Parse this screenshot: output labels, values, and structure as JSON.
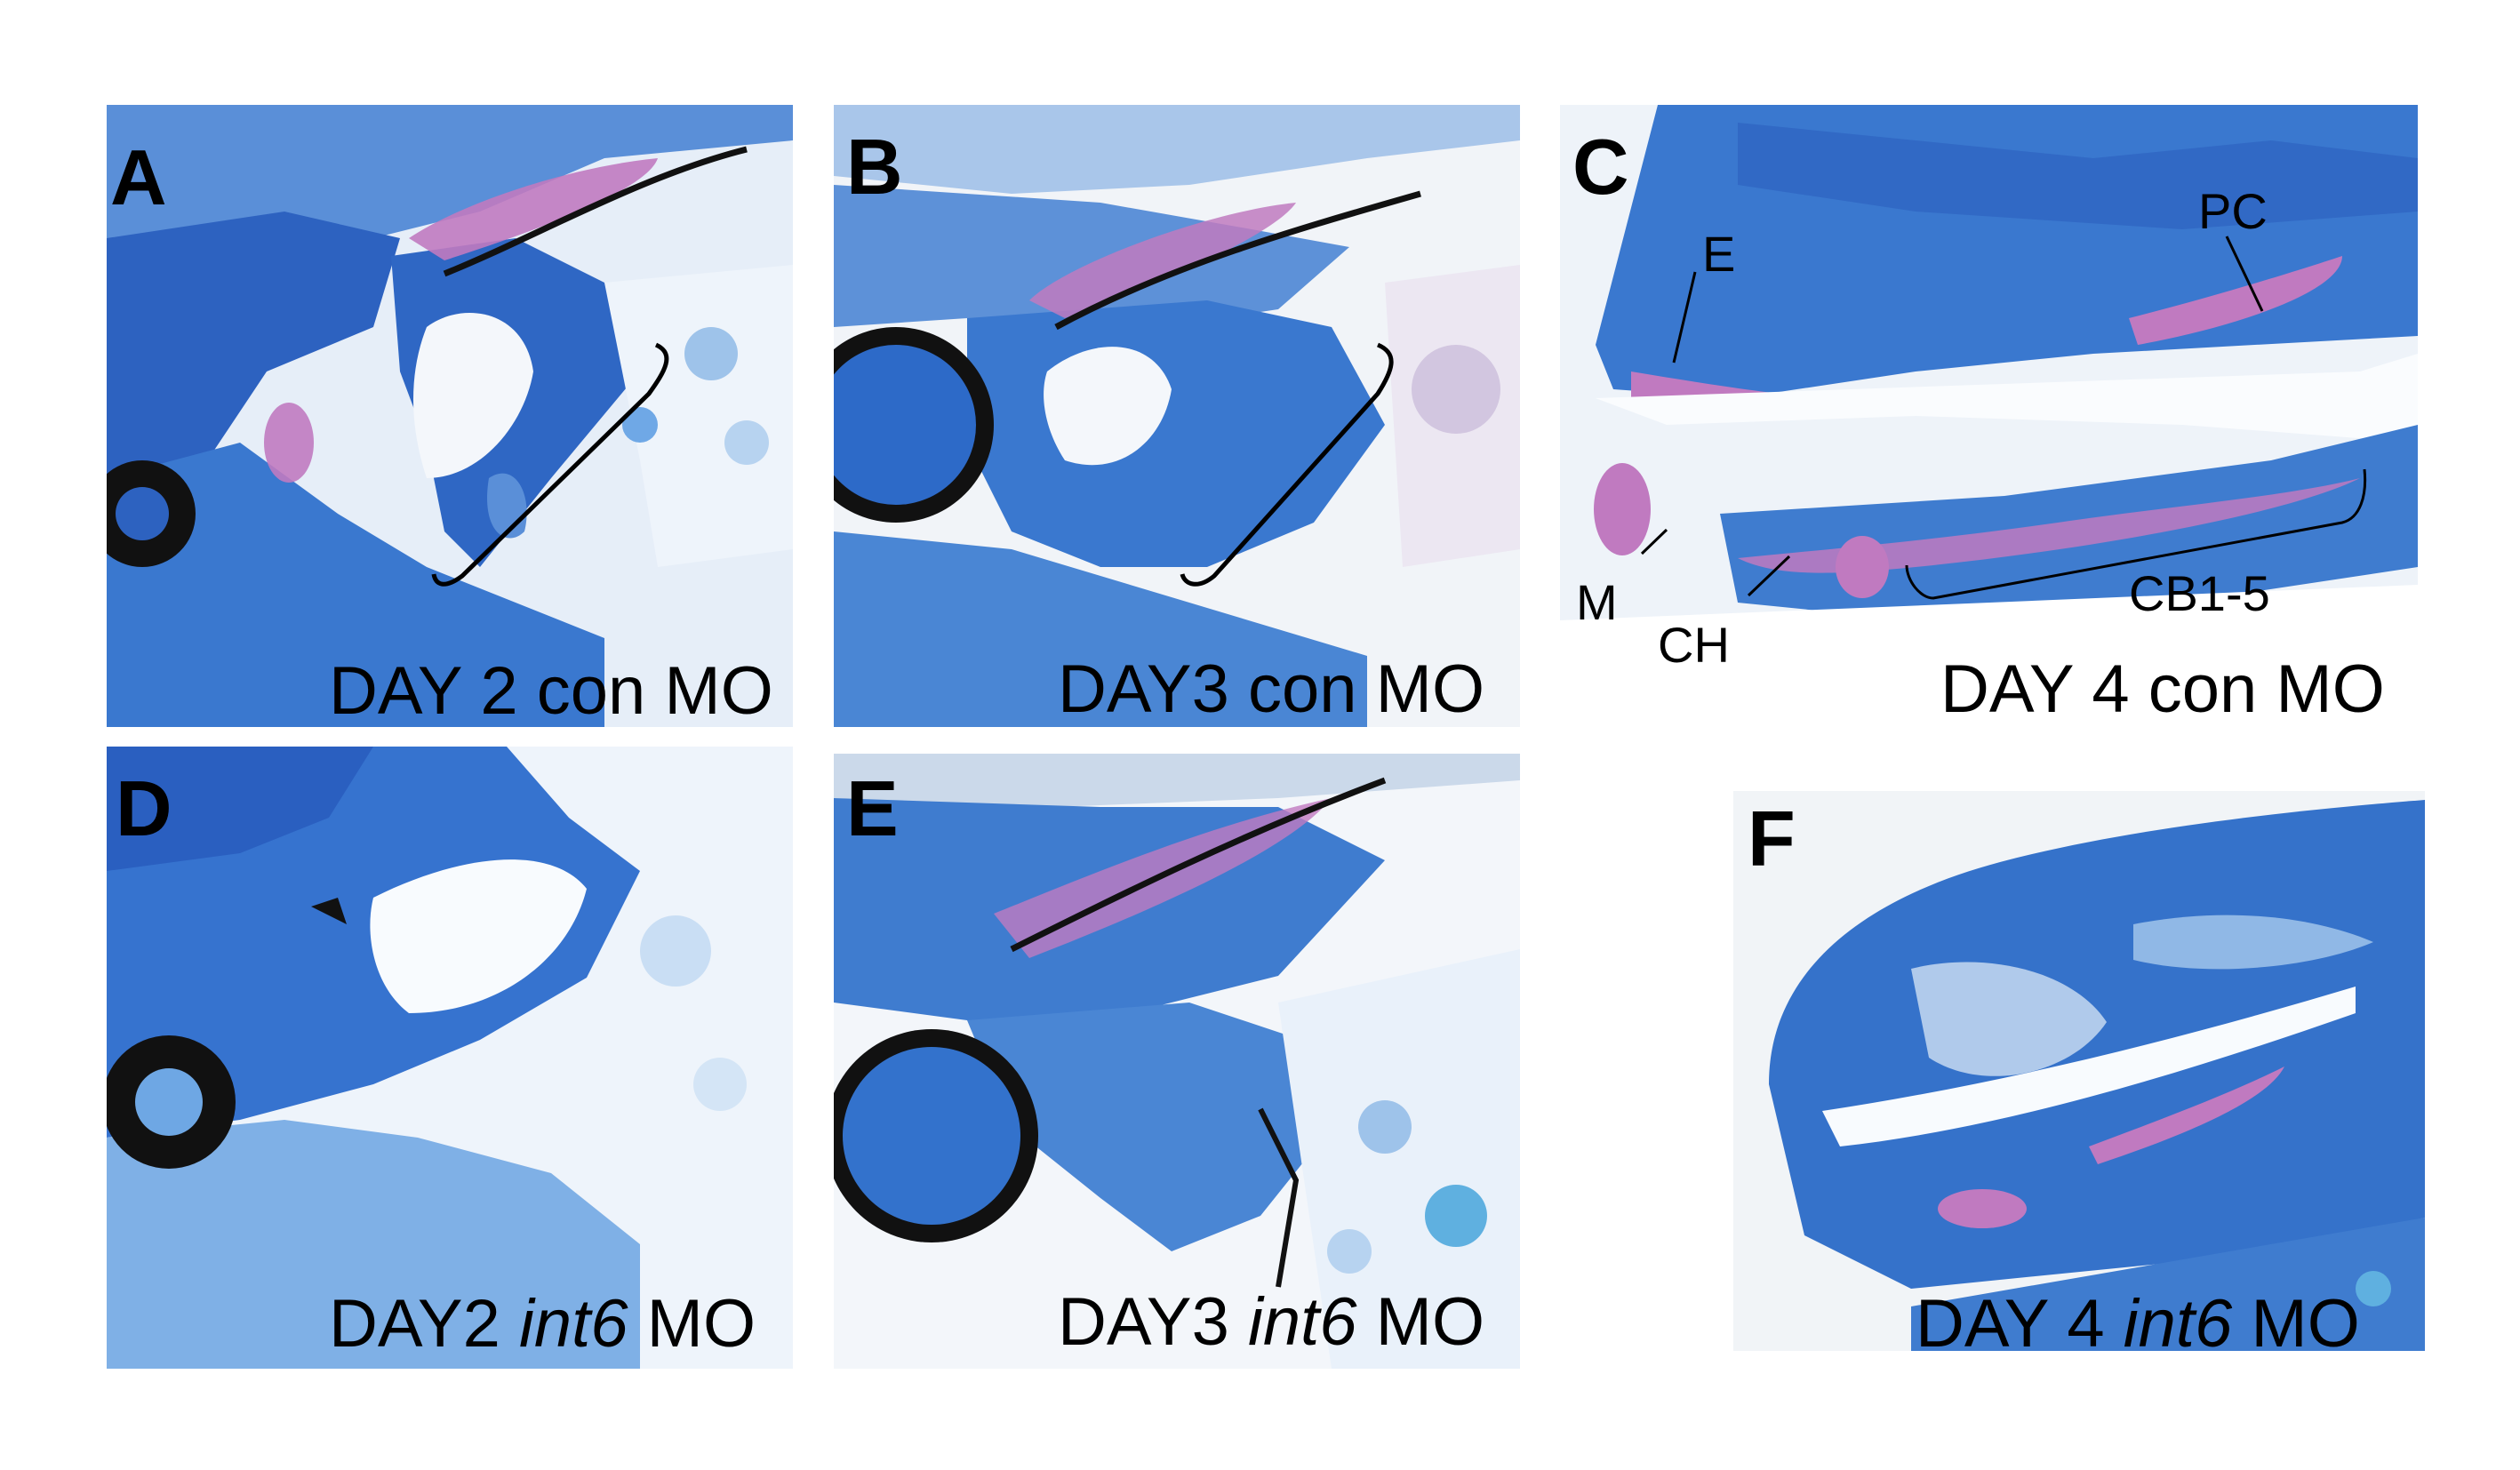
{
  "panels": {
    "A": {
      "letter": "A",
      "caption": "DAY 2 con MO"
    },
    "B": {
      "letter": "B",
      "caption": "DAY3 con MO"
    },
    "C": {
      "letter": "C",
      "caption": "DAY 4 con MO",
      "labels": {
        "E": "E",
        "PC": "PC",
        "M": "M",
        "CH": "CH",
        "CB": "CB1-5"
      }
    },
    "D": {
      "letter": "D",
      "caption_prefix": "DAY2 ",
      "caption_italic": "int6",
      "caption_suffix": " MO"
    },
    "E": {
      "letter": "E",
      "caption_prefix": "DAY3 ",
      "caption_italic": "int6",
      "caption_suffix": " MO"
    },
    "F": {
      "letter": "F",
      "caption_prefix": "DAY 4 ",
      "caption_italic": "int6",
      "caption_suffix": " MO"
    }
  },
  "colors": {
    "stain_blue": "#3a78cf",
    "deep_blue": "#2656b0",
    "light_blue": "#9ec3ea",
    "cartilage_pink": "#c07ac0",
    "pigment_black": "#111111",
    "background_white": "#f4f7fb"
  }
}
